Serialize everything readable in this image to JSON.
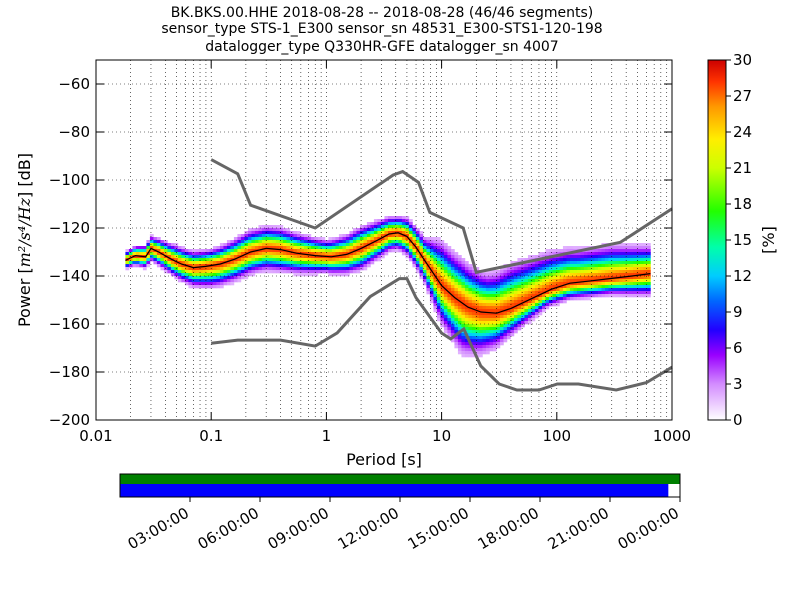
{
  "title": {
    "line1": "BK.BKS.00.HHE   2018-08-28 -- 2018-08-28  (46/46 segments)",
    "line2": "sensor_type STS-1_E300 sensor_sn 48531_E300-STS1-120-198",
    "line3": "datalogger_type Q330HR-GFE datalogger_sn 4007"
  },
  "chart_data": {
    "type": "heatmap",
    "xlabel": "Period [s]",
    "ylabel_prefix": "Power [",
    "ylabel_math": "m²/s⁴/Hz",
    "ylabel_suffix": "] [dB]",
    "x_scale": "log",
    "xlim": [
      0.01,
      1000
    ],
    "ylim": [
      -200,
      -50
    ],
    "x_ticks": [
      0.01,
      0.1,
      1,
      10,
      100,
      1000
    ],
    "x_tick_labels": [
      "0.01",
      "0.1",
      "1",
      "10",
      "100",
      "1000"
    ],
    "y_ticks": [
      -200,
      -180,
      -160,
      -140,
      -120,
      -100,
      -80,
      -60
    ],
    "y_tick_labels": [
      "−200",
      "−180",
      "−160",
      "−140",
      "−120",
      "−100",
      "−80",
      "−60"
    ],
    "grid": true,
    "colorbar": {
      "label": "[%]",
      "range": [
        0,
        30
      ],
      "ticks": [
        0,
        3,
        6,
        9,
        12,
        15,
        18,
        21,
        24,
        27,
        30
      ],
      "colormap": "pqlx"
    },
    "nhnm": [
      [
        0.1,
        -91.5
      ],
      [
        0.17,
        -97.4
      ],
      [
        0.22,
        -110.5
      ],
      [
        0.8,
        -120
      ],
      [
        3.8,
        -97.9
      ],
      [
        4.6,
        -96.5
      ],
      [
        6.3,
        -101
      ],
      [
        7.9,
        -113.5
      ],
      [
        15.4,
        -120
      ],
      [
        20,
        -138.5
      ],
      [
        354.8,
        -126
      ],
      [
        1000,
        -112
      ]
    ],
    "nlnm": [
      [
        0.1,
        -168
      ],
      [
        0.17,
        -166.7
      ],
      [
        0.4,
        -166.7
      ],
      [
        0.8,
        -169.2
      ],
      [
        1.24,
        -163.7
      ],
      [
        2.4,
        -148.6
      ],
      [
        4.3,
        -141.1
      ],
      [
        5,
        -141.1
      ],
      [
        6,
        -149
      ],
      [
        10,
        -163.8
      ],
      [
        12,
        -166.2
      ],
      [
        15.6,
        -162.1
      ],
      [
        21.9,
        -177.5
      ],
      [
        31.6,
        -185
      ],
      [
        45,
        -187.5
      ],
      [
        70,
        -187.5
      ],
      [
        101,
        -185
      ],
      [
        154,
        -185
      ],
      [
        328,
        -187.5
      ],
      [
        600,
        -184.4
      ],
      [
        1000,
        -178
      ]
    ],
    "mode_curve": [
      [
        0.018,
        -133.5
      ],
      [
        0.022,
        -131.5
      ],
      [
        0.027,
        -132
      ],
      [
        0.03,
        -128.5
      ],
      [
        0.035,
        -130
      ],
      [
        0.045,
        -133
      ],
      [
        0.055,
        -135
      ],
      [
        0.07,
        -136.5
      ],
      [
        0.09,
        -136
      ],
      [
        0.12,
        -135
      ],
      [
        0.16,
        -133
      ],
      [
        0.22,
        -130
      ],
      [
        0.3,
        -128.5
      ],
      [
        0.4,
        -129
      ],
      [
        0.55,
        -130.5
      ],
      [
        0.8,
        -131.5
      ],
      [
        1.1,
        -132
      ],
      [
        1.5,
        -131
      ],
      [
        2,
        -128.5
      ],
      [
        2.8,
        -125
      ],
      [
        3.5,
        -122.5
      ],
      [
        4.2,
        -122
      ],
      [
        5,
        -123.5
      ],
      [
        6,
        -128
      ],
      [
        7,
        -133
      ],
      [
        8.5,
        -139
      ],
      [
        10,
        -144
      ],
      [
        13,
        -149
      ],
      [
        17,
        -153
      ],
      [
        22,
        -155
      ],
      [
        30,
        -155.5
      ],
      [
        40,
        -153.5
      ],
      [
        60,
        -149.5
      ],
      [
        90,
        -145.5
      ],
      [
        130,
        -143
      ],
      [
        200,
        -142
      ],
      [
        300,
        -141
      ],
      [
        450,
        -140
      ],
      [
        650,
        -139
      ]
    ],
    "spread": [
      [
        0.018,
        1.5,
        1.5
      ],
      [
        0.05,
        3,
        3
      ],
      [
        0.1,
        3,
        4
      ],
      [
        0.2,
        4,
        4
      ],
      [
        0.4,
        4,
        4
      ],
      [
        1,
        3,
        3
      ],
      [
        2,
        4,
        4
      ],
      [
        4,
        3,
        3
      ],
      [
        7,
        4,
        4
      ],
      [
        10,
        8,
        7
      ],
      [
        15,
        8,
        9
      ],
      [
        25,
        7,
        7
      ],
      [
        40,
        8,
        5
      ],
      [
        80,
        7,
        3
      ],
      [
        150,
        6,
        3
      ],
      [
        300,
        6,
        3
      ],
      [
        650,
        5,
        4
      ]
    ],
    "grid_rows": 120,
    "grid_cols": 150
  },
  "data_coverage": {
    "time_tick_labels": [
      "03:00:00",
      "06:00:00",
      "09:00:00",
      "12:00:00",
      "15:00:00",
      "18:00:00",
      "21:00:00",
      "00:00:00"
    ],
    "time_ticks_hours": [
      3,
      6,
      9,
      12,
      15,
      18,
      21,
      24
    ],
    "span_hours": 24,
    "data_hours": [
      0,
      23.5
    ],
    "colors": {
      "gaps_bar": "#008000",
      "data_bar": "#0000ff"
    }
  }
}
